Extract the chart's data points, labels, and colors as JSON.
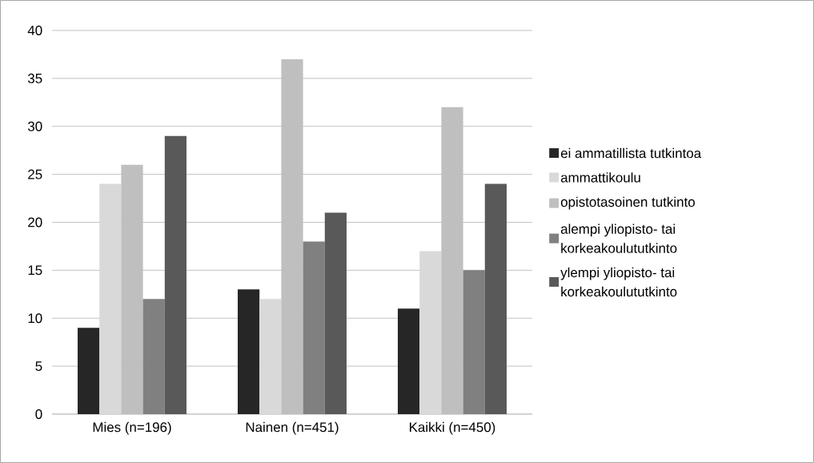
{
  "chart_data": {
    "type": "bar",
    "categories": [
      "Mies (n=196)",
      "Nainen (n=451)",
      "Kaikki (n=450)"
    ],
    "series": [
      {
        "name": "ei ammatillista tutkintoa",
        "color": "#262626",
        "values": [
          9,
          13,
          11
        ]
      },
      {
        "name": "ammattikoulu",
        "color": "#d9d9d9",
        "values": [
          24,
          12,
          17
        ]
      },
      {
        "name": "opistotasoinen tutkinto",
        "color": "#bfbfbf",
        "values": [
          26,
          37,
          32
        ]
      },
      {
        "name": "alempi yliopisto- tai korkeakoulututkinto",
        "color": "#808080",
        "values": [
          12,
          18,
          15
        ]
      },
      {
        "name": "ylempi yliopisto- tai korkeakoulututkinto",
        "color": "#595959",
        "values": [
          29,
          21,
          24
        ]
      }
    ],
    "ylim": [
      0,
      40
    ],
    "yticks": [
      0,
      5,
      10,
      15,
      20,
      25,
      30,
      35,
      40
    ],
    "grid": "y",
    "legend": "right"
  }
}
